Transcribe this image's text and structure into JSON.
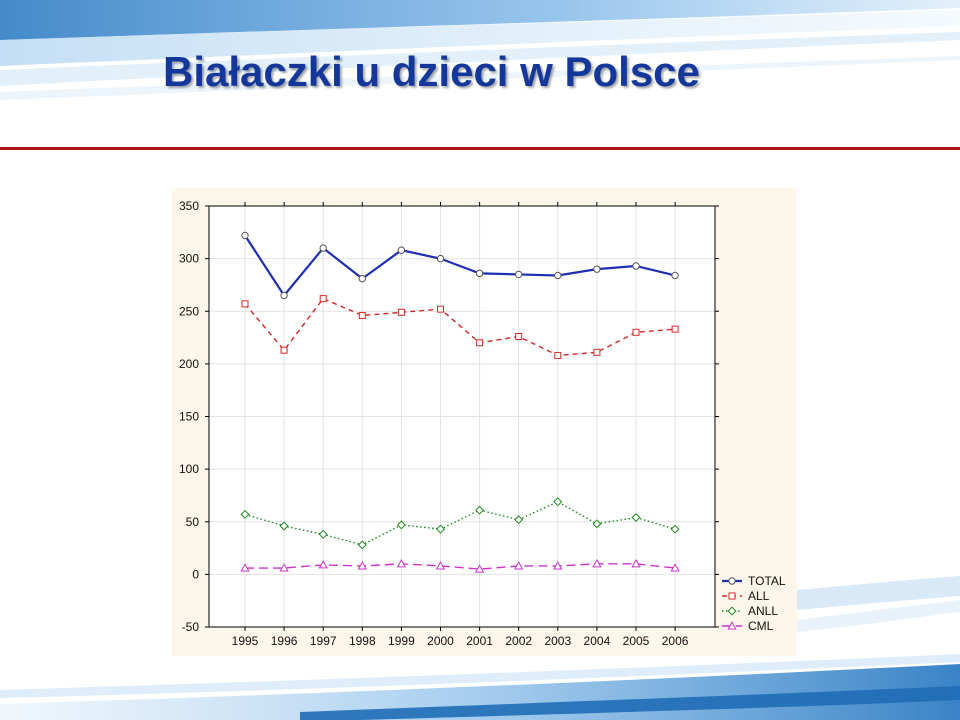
{
  "slide": {
    "title": "Białaczki u dzieci w Polsce"
  },
  "colors": {
    "title": "#13379b",
    "rule": "#b0141b",
    "panel": "#fcf7ea",
    "deco_blue": "#2f7dc4"
  },
  "chart_data": {
    "type": "line",
    "title": "",
    "xlabel": "",
    "ylabel": "",
    "x": [
      1995,
      1996,
      1997,
      1998,
      1999,
      2000,
      2001,
      2002,
      2003,
      2004,
      2005,
      2006
    ],
    "ylim": [
      -50,
      350
    ],
    "yticks": [
      -50,
      0,
      50,
      100,
      150,
      200,
      250,
      300,
      350
    ],
    "grid": true,
    "legend_position": "bottom-right, outside plot area",
    "series": [
      {
        "name": "TOTAL",
        "values": [
          322,
          265,
          310,
          281,
          308,
          300,
          286,
          285,
          284,
          290,
          293,
          284
        ],
        "color": "#1f2fb5",
        "line_style": "solid",
        "marker": "circle"
      },
      {
        "name": "ALL",
        "values": [
          257,
          213,
          262,
          246,
          249,
          252,
          220,
          226,
          208,
          211,
          230,
          233
        ],
        "color": "#d62828",
        "line_style": "dashed",
        "marker": "square"
      },
      {
        "name": "ANLL",
        "values": [
          57,
          46,
          38,
          28,
          47,
          43,
          61,
          52,
          69,
          48,
          54,
          43
        ],
        "color": "#1e8a1e",
        "line_style": "dotted",
        "marker": "diamond"
      },
      {
        "name": "CML",
        "values": [
          6,
          6,
          9,
          8,
          10,
          8,
          5,
          8,
          8,
          10,
          10,
          6
        ],
        "color": "#cc33cc",
        "line_style": "long-dash",
        "marker": "triangle"
      }
    ]
  }
}
